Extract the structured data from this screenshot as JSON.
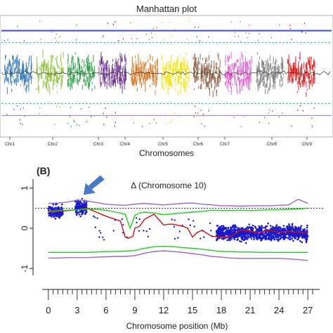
{
  "chart_data": [
    {
      "type": "scatter",
      "title": "Manhattan plot",
      "xlabel": "Chromosomes",
      "ylabel": "",
      "categories": [
        "Chr1",
        "Chr2",
        "Chr3",
        "Chr4",
        "Chr5",
        "Chr6",
        "Chr7",
        "Chr8",
        "Chr9"
      ],
      "chromosome_colors": [
        "#2f74b5",
        "#8fbf3a",
        "#2fa14a",
        "#6a2c91",
        "#d9731c",
        "#f5e400",
        "#8a5a3c",
        "#e85bd0",
        "#808080",
        "#e31a1c"
      ],
      "threshold_upper": 1.0,
      "threshold_lower": -1.0,
      "ylim": [
        -1.4,
        1.4
      ],
      "grid": false
    },
    {
      "type": "scatter",
      "panel_label": "(B)",
      "title": "Δ (Chromosome 10)",
      "xlabel": "Chromosome position (Mb)",
      "ylabel": "",
      "xticks": [
        "0",
        "3",
        "6",
        "9",
        "12",
        "15",
        "18",
        "21",
        "24",
        "27"
      ],
      "yticks": [
        "1",
        "0",
        "-1"
      ],
      "xlim": [
        -0.5,
        27.5
      ],
      "ylim": [
        -1.05,
        1.1
      ],
      "reference_line": 0.5,
      "points_color": "#1a1acc",
      "dense_regions": [
        {
          "x": [
            0.0,
            1.5
          ],
          "y_center": 0.42,
          "spread": 0.22
        },
        {
          "x": [
            2.8,
            4.0
          ],
          "y_center": 0.52,
          "spread": 0.26
        },
        {
          "x": [
            17.5,
            27.0
          ],
          "y_center": -0.12,
          "spread": 0.26
        }
      ],
      "series": [
        {
          "color": "#d01010",
          "x": [
            0,
            1,
            2,
            3,
            3.5,
            4,
            5,
            6,
            7,
            7.5,
            8,
            8.3,
            8.8,
            9,
            9.5,
            10,
            11,
            12,
            12.5,
            13,
            14,
            14.5,
            15,
            15.5,
            16,
            17,
            18,
            19,
            20,
            21,
            22,
            23,
            24,
            25,
            26,
            27
          ],
          "y": [
            0.4,
            0.42,
            0.44,
            0.46,
            0.48,
            0.5,
            0.4,
            0.3,
            0.22,
            0.18,
            -0.22,
            -0.25,
            -0.2,
            0.0,
            0.05,
            0.22,
            0.35,
            0.08,
            0.1,
            0.1,
            0.05,
            0.0,
            -0.22,
            -0.1,
            -0.05,
            -0.2,
            -0.22,
            -0.2,
            -0.05,
            -0.08,
            -0.1,
            -0.05,
            -0.1,
            -0.08,
            -0.1,
            -0.12
          ]
        },
        {
          "color": "#22cc22",
          "x": [
            0,
            1,
            2,
            3,
            4,
            5,
            6,
            7,
            8,
            8.5,
            9,
            9.5,
            10,
            11,
            12,
            13,
            14,
            15,
            16,
            17,
            18,
            19,
            20,
            21,
            22,
            23,
            24,
            25,
            26,
            27
          ],
          "y": [
            0.42,
            0.44,
            0.45,
            0.46,
            0.48,
            0.47,
            0.45,
            0.4,
            0.35,
            0.0,
            0.32,
            0.38,
            0.4,
            0.38,
            0.34,
            0.36,
            0.38,
            0.4,
            0.42,
            0.45,
            0.44,
            0.44,
            0.45,
            0.44,
            0.45,
            0.46,
            0.46,
            0.47,
            0.48,
            0.5
          ]
        },
        {
          "color": "#22cc22",
          "x": [
            0,
            1,
            2,
            3,
            4,
            5,
            6,
            7,
            8,
            9,
            10,
            11,
            12,
            13,
            14,
            15,
            16,
            17,
            18,
            19,
            20,
            21,
            22,
            23,
            24,
            25,
            26,
            27
          ],
          "y": [
            -0.6,
            -0.6,
            -0.6,
            -0.6,
            -0.6,
            -0.59,
            -0.58,
            -0.58,
            -0.57,
            -0.55,
            -0.5,
            -0.46,
            -0.45,
            -0.46,
            -0.48,
            -0.5,
            -0.52,
            -0.55,
            -0.58,
            -0.58,
            -0.59,
            -0.59,
            -0.6,
            -0.6,
            -0.6,
            -0.6,
            -0.6,
            -0.6
          ]
        },
        {
          "color": "#9966cc",
          "x": [
            0,
            1,
            2,
            3,
            4,
            5,
            6,
            7,
            8,
            9,
            10,
            11,
            12,
            13,
            14,
            15,
            16,
            17,
            18,
            19,
            20,
            21,
            22,
            23,
            24,
            25,
            26,
            27
          ],
          "y": [
            0.62,
            0.63,
            0.65,
            0.7,
            0.68,
            0.64,
            0.6,
            0.58,
            0.57,
            0.6,
            0.62,
            0.6,
            0.58,
            0.6,
            0.62,
            0.63,
            0.6,
            0.58,
            0.56,
            0.56,
            0.55,
            0.56,
            0.56,
            0.56,
            0.57,
            0.58,
            0.72,
            0.62
          ]
        },
        {
          "color": "#9966cc",
          "x": [
            0,
            1,
            2,
            3,
            4,
            5,
            6,
            7,
            8,
            9,
            10,
            11,
            12,
            13,
            14,
            15,
            16,
            17,
            18,
            19,
            20,
            21,
            22,
            23,
            24,
            25,
            26,
            27
          ],
          "y": [
            -0.74,
            -0.74,
            -0.73,
            -0.73,
            -0.73,
            -0.72,
            -0.71,
            -0.7,
            -0.7,
            -0.68,
            -0.62,
            -0.58,
            -0.56,
            -0.58,
            -0.6,
            -0.63,
            -0.66,
            -0.7,
            -0.72,
            -0.74,
            -0.75,
            -0.75,
            -0.75,
            -0.75,
            -0.75,
            -0.76,
            -0.78,
            -0.8
          ]
        }
      ],
      "annotation": {
        "type": "arrow",
        "color": "#4a78c8",
        "points_to_x": 3.8
      }
    }
  ]
}
